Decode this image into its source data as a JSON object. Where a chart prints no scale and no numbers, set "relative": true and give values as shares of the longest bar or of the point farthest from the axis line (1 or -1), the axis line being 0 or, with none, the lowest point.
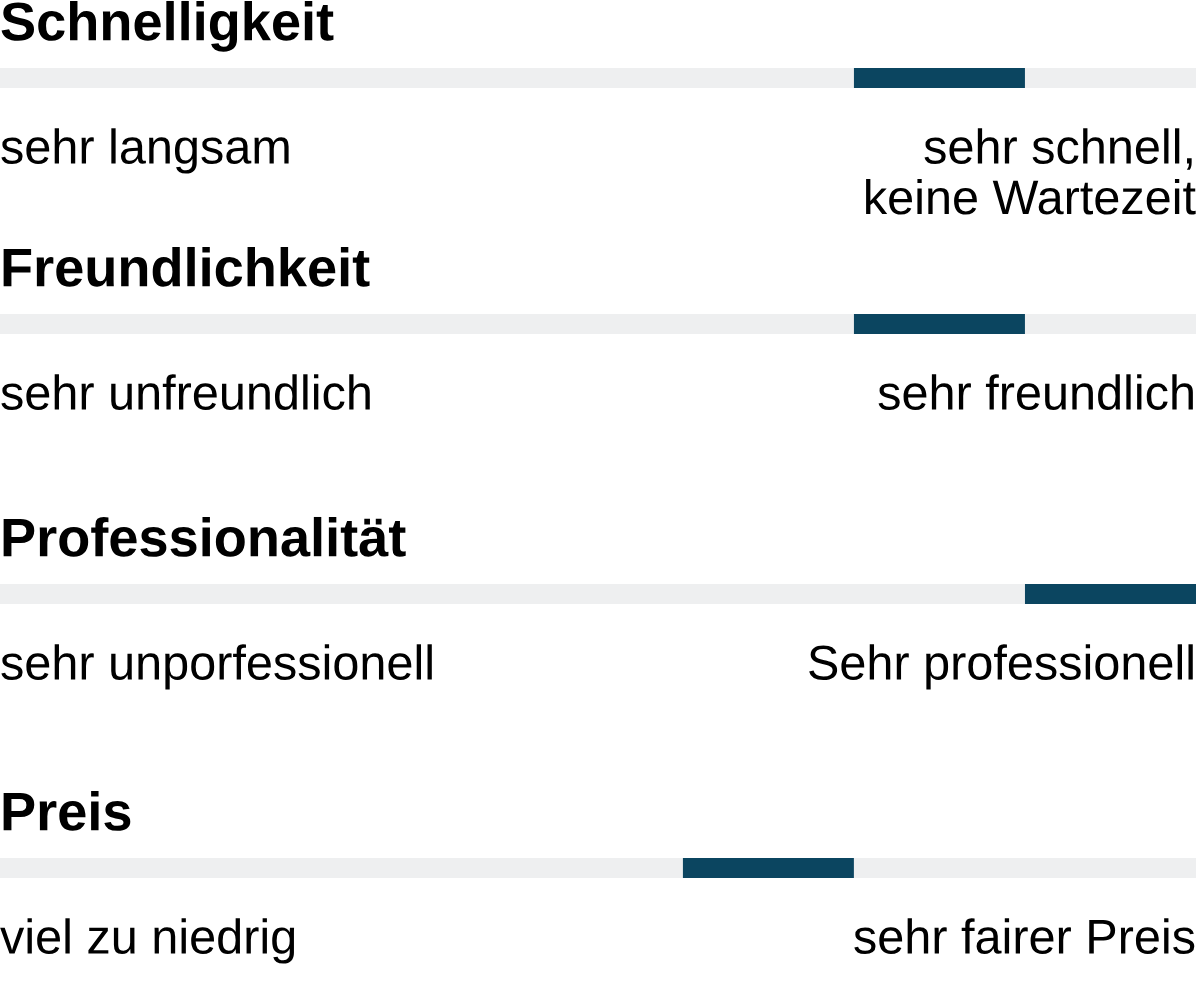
{
  "chart_data": [
    {
      "type": "bar",
      "orientation": "horizontal",
      "stacked": true,
      "relative": true,
      "title": "Schnelligkeit",
      "categories": [
        null
      ],
      "series": [
        {
          "color": "#eeeff0",
          "values": [
            0.714
          ]
        },
        {
          "color": "#0b4560",
          "values": [
            0.143
          ]
        },
        {
          "color": "#eeeff0",
          "values": [
            0.143
          ]
        }
      ],
      "annotations": [
        "sehr langsam",
        "sehr schnell,\nkeine Wartezeit"
      ]
    },
    {
      "type": "bar",
      "orientation": "horizontal",
      "stacked": true,
      "relative": true,
      "title": "Freundlichkeit",
      "categories": [
        null
      ],
      "series": [
        {
          "color": "#eeeff0",
          "values": [
            0.714
          ]
        },
        {
          "color": "#0b4560",
          "values": [
            0.143
          ]
        },
        {
          "color": "#eeeff0",
          "values": [
            0.143
          ]
        }
      ],
      "annotations": [
        "sehr unfreundlich",
        "sehr freundlich"
      ]
    },
    {
      "type": "bar",
      "orientation": "horizontal",
      "stacked": true,
      "relative": true,
      "title": "Professionalität",
      "categories": [
        null
      ],
      "series": [
        {
          "color": "#eeeff0",
          "values": [
            0.857
          ]
        },
        {
          "color": "#0b4560",
          "values": [
            0.143
          ]
        }
      ],
      "annotations": [
        "sehr unporfessionell",
        "Sehr professionell"
      ]
    },
    {
      "type": "bar",
      "orientation": "horizontal",
      "stacked": true,
      "relative": true,
      "title": "Preis",
      "categories": [
        null
      ],
      "series": [
        {
          "color": "#eeeff0",
          "values": [
            0.571
          ]
        },
        {
          "color": "#0b4560",
          "values": [
            0.143
          ]
        },
        {
          "color": "#eeeff0",
          "values": [
            0.286
          ]
        }
      ],
      "annotations": [
        "viel zu niedrig",
        "sehr fairer Preis"
      ]
    }
  ]
}
